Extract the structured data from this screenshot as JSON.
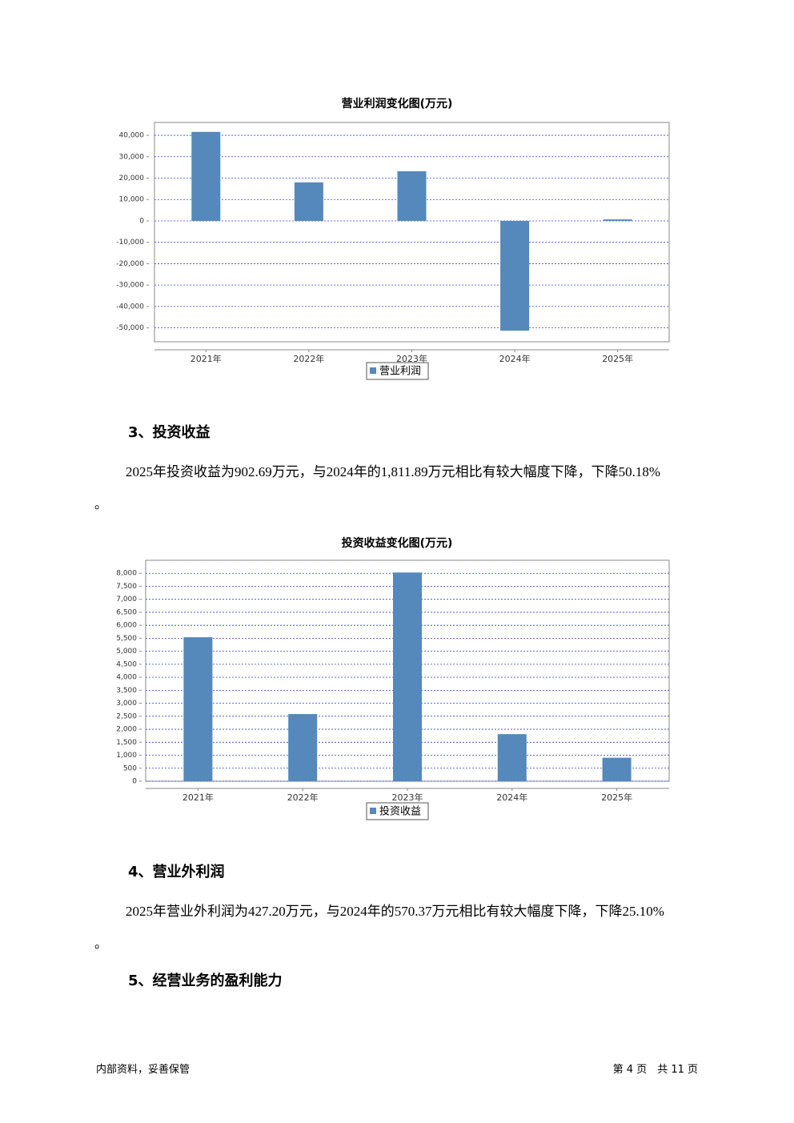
{
  "chart_data": [
    {
      "type": "bar",
      "title": "营业利润变化图(万元)",
      "categories": [
        "2021年",
        "2022年",
        "2023年",
        "2024年",
        "2025年"
      ],
      "series": [
        {
          "name": "营业利润",
          "color": "#5588bb",
          "values": [
            41600,
            18000,
            23200,
            -51300,
            700
          ]
        }
      ],
      "ylim": [
        -56500,
        46000
      ],
      "yticks": [
        {
          "value": -50000,
          "label": "-50,000"
        },
        {
          "value": -40000,
          "label": "-40,000"
        },
        {
          "value": -30000,
          "label": "-30,000"
        },
        {
          "value": -20000,
          "label": "-20,000"
        },
        {
          "value": -10000,
          "label": "-10,000"
        },
        0,
        {
          "value": 10000,
          "label": "10,000"
        },
        {
          "value": 20000,
          "label": "20,000"
        },
        {
          "value": 30000,
          "label": "30,000"
        },
        {
          "value": 40000,
          "label": "40,000"
        }
      ],
      "grid": true
    },
    {
      "type": "bar",
      "title": "投资收益变化图(万元)",
      "categories": [
        "2021年",
        "2022年",
        "2023年",
        "2024年",
        "2025年"
      ],
      "series": [
        {
          "name": "投资收益",
          "color": "#5588bb",
          "values": [
            5540,
            2585,
            8030,
            1811.89,
            902.69
          ]
        }
      ],
      "ylim": [
        0,
        8500
      ],
      "yticks": [
        0,
        500,
        {
          "value": 1000,
          "label": "1,000"
        },
        {
          "value": 1500,
          "label": "1,500"
        },
        {
          "value": 2000,
          "label": "2,000"
        },
        {
          "value": 2500,
          "label": "2,500"
        },
        {
          "value": 3000,
          "label": "3,000"
        },
        {
          "value": 3500,
          "label": "3,500"
        },
        {
          "value": 4000,
          "label": "4,000"
        },
        {
          "value": 4500,
          "label": "4,500"
        },
        {
          "value": 5000,
          "label": "5,000"
        },
        {
          "value": 5500,
          "label": "5,500"
        },
        {
          "value": 6000,
          "label": "6,000"
        },
        {
          "value": 6500,
          "label": "6,500"
        },
        {
          "value": 7000,
          "label": "7,000"
        },
        {
          "value": 7500,
          "label": "7,500"
        },
        {
          "value": 8000,
          "label": "8,000"
        }
      ],
      "grid": true
    }
  ],
  "sections": [
    {
      "heading": "3、投资收益",
      "paragraph": "2025年投资收益为902.69万元，与2024年的1,811.89万元相比有较大幅度下降，下降50.18%",
      "tail": "。"
    },
    {
      "heading": "4、营业外利润",
      "paragraph": "2025年营业外利润为427.20万元，与2024年的570.37万元相比有较大幅度下降，下降25.10%",
      "tail": "。"
    },
    {
      "heading": "5、经营业务的盈利能力"
    }
  ],
  "footer": {
    "left": "内部资料，妥善保管",
    "right": "第 4 页　共 11 页"
  }
}
